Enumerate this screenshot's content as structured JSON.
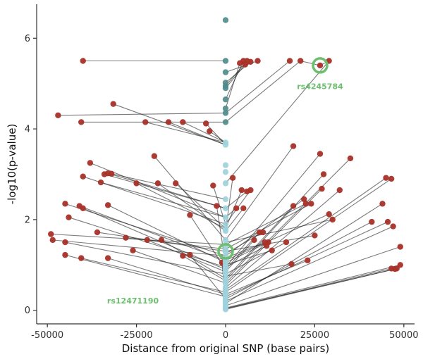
{
  "chart_data": {
    "type": "scatter",
    "xlabel": "Distance from original SNP (base pairs)",
    "ylabel": "-log10(p-value)",
    "xlim": [
      -53000,
      53000
    ],
    "ylim": [
      -0.3,
      6.75
    ],
    "xticks": [
      -50000,
      -25000,
      0,
      25000,
      50000
    ],
    "xtick_labels": [
      "-50000",
      "-25000",
      "0",
      "25000",
      "50000"
    ],
    "yticks": [
      0,
      2,
      4,
      6
    ],
    "ytick_labels": [
      "0",
      "2",
      "4",
      "6"
    ],
    "grid": false,
    "legend": "none",
    "colors": {
      "proxy": "#a83228",
      "original": "#9fd2db",
      "original_top": "#4f8a8b",
      "line": "#222222",
      "highlight": "#6cbf6c"
    },
    "series": [
      {
        "role": "original",
        "x": [
          0,
          0,
          0,
          0,
          0,
          0,
          0,
          0,
          0,
          0,
          0,
          0,
          0,
          0,
          0,
          0,
          0,
          0,
          0,
          0,
          0,
          0,
          0,
          0,
          0,
          0,
          0,
          0,
          0,
          0,
          0,
          0,
          0,
          0,
          0,
          0,
          0,
          0,
          0,
          0,
          0,
          0,
          0,
          0,
          0,
          0,
          0
        ],
        "y": [
          6.4,
          5.5,
          5.25,
          5.02,
          4.95,
          4.9,
          4.65,
          4.45,
          4.35,
          4.15,
          3.7,
          3.65,
          3.2,
          3.05,
          2.8,
          2.45,
          2.25,
          2.05,
          1.9,
          1.8,
          1.75,
          1.55,
          1.45,
          1.35,
          1.3,
          1.2,
          1.1,
          1.05,
          1.0,
          0.95,
          0.9,
          0.85,
          0.8,
          0.7,
          0.65,
          0.6,
          0.5,
          0.45,
          0.4,
          0.35,
          0.3,
          0.25,
          0.2,
          0.15,
          0.1,
          0.05,
          0.02
        ]
      },
      {
        "role": "proxy",
        "x": [
          -40000,
          -47000,
          -40500,
          -31500,
          -22500,
          -16000,
          -12000,
          -5500,
          -4500,
          -38000,
          -34000,
          -33000,
          -32000,
          -35000,
          -40000,
          -25000,
          -19000,
          -14000,
          -3500,
          -20000,
          -45000,
          -41000,
          -33000,
          -44000,
          -40000,
          -10000,
          -2500,
          -36000,
          -49000,
          -48500,
          -28000,
          -45000,
          -22000,
          -18000,
          -12000,
          -26000,
          -40500,
          -33000,
          -45000,
          -10000,
          -1000,
          2000,
          4500,
          6000,
          7000,
          19000,
          22000,
          29000,
          26500,
          3000,
          5000,
          8000,
          9500,
          17000,
          19000,
          27500,
          35000,
          27000,
          32000,
          45000,
          46500,
          22500,
          24000,
          25000,
          30000,
          23000,
          45500,
          41000,
          47000,
          44000,
          49000,
          49000,
          10500,
          11000,
          12000,
          13000,
          11500,
          18500,
          48000,
          46500,
          47500
        ],
        "y": [
          5.5,
          4.3,
          4.15,
          4.55,
          4.15,
          4.15,
          4.15,
          4.12,
          3.95,
          3.25,
          3.0,
          3.02,
          3.01,
          2.82,
          2.95,
          2.8,
          2.8,
          2.8,
          2.75,
          3.4,
          2.35,
          2.3,
          2.32,
          2.05,
          2.25,
          2.1,
          2.3,
          1.72,
          1.68,
          1.55,
          1.6,
          1.5,
          1.55,
          1.55,
          1.2,
          1.32,
          1.15,
          1.15,
          1.22,
          1.22,
          1.05,
          2.92,
          2.65,
          2.62,
          2.65,
          3.62,
          2.45,
          2.12,
          3.45,
          2.25,
          2.25,
          1.55,
          1.72,
          1.5,
          2.3,
          3.0,
          3.35,
          2.68,
          2.65,
          2.92,
          2.9,
          2.35,
          2.35,
          1.65,
          2.0,
          1.1,
          1.95,
          1.95,
          1.85,
          2.35,
          1.4,
          1.0,
          1.72,
          1.5,
          1.5,
          1.32,
          1.42,
          1.02,
          0.92,
          0.92,
          0.91
        ]
      },
      {
        "role": "proxy-top-cluster",
        "x": [
          4000,
          5000,
          5500,
          6000,
          7000,
          9000,
          18000,
          21000,
          26500,
          29000
        ],
        "y": [
          5.45,
          5.5,
          5.42,
          5.5,
          5.48,
          5.5,
          5.5,
          5.5,
          5.4,
          5.5
        ]
      }
    ],
    "links": [
      [
        0,
        5.5,
        -40000,
        5.5
      ],
      [
        0,
        4.35,
        -47000,
        4.3
      ],
      [
        0,
        4.15,
        -40500,
        4.15
      ],
      [
        0,
        3.65,
        -31500,
        4.55
      ],
      [
        0,
        3.7,
        -22500,
        4.15
      ],
      [
        0,
        3.65,
        -16000,
        4.15
      ],
      [
        0,
        3.7,
        -12000,
        4.15
      ],
      [
        0,
        3.65,
        -5500,
        4.12
      ],
      [
        0,
        3.7,
        -4500,
        3.95
      ],
      [
        0,
        2.05,
        -38000,
        3.25
      ],
      [
        0,
        2.25,
        -34000,
        3.0
      ],
      [
        0,
        2.25,
        -33000,
        3.02
      ],
      [
        0,
        2.45,
        -32000,
        3.01
      ],
      [
        0,
        2.05,
        -35000,
        2.82
      ],
      [
        0,
        1.9,
        -40000,
        2.95
      ],
      [
        0,
        1.8,
        -25000,
        2.8
      ],
      [
        0,
        1.75,
        -19000,
        2.8
      ],
      [
        0,
        1.8,
        -14000,
        2.8
      ],
      [
        0,
        1.9,
        -3500,
        2.75
      ],
      [
        0,
        1.55,
        -20000,
        3.4
      ],
      [
        0,
        1.2,
        -45000,
        2.35
      ],
      [
        0,
        1.1,
        -41000,
        2.3
      ],
      [
        0,
        1.05,
        -33000,
        2.32
      ],
      [
        0,
        0.95,
        -44000,
        2.05
      ],
      [
        0,
        0.9,
        -40000,
        2.25
      ],
      [
        0,
        0.9,
        -10000,
        2.1
      ],
      [
        0,
        1.0,
        -2500,
        2.3
      ],
      [
        0,
        1.3,
        -36000,
        1.72
      ],
      [
        0,
        1.45,
        -49000,
        1.68
      ],
      [
        0,
        1.2,
        -48500,
        1.55
      ],
      [
        0,
        1.35,
        -28000,
        1.6
      ],
      [
        0,
        0.8,
        -45000,
        1.5
      ],
      [
        0,
        0.85,
        -22000,
        1.55
      ],
      [
        0,
        0.7,
        -18000,
        1.55
      ],
      [
        0,
        0.65,
        -12000,
        1.2
      ],
      [
        0,
        0.6,
        -26000,
        1.32
      ],
      [
        0,
        0.4,
        -40500,
        1.15
      ],
      [
        0,
        0.35,
        -33000,
        1.15
      ],
      [
        0,
        0.3,
        -45000,
        1.22
      ],
      [
        0,
        0.25,
        -10000,
        1.22
      ],
      [
        0,
        0.1,
        -1000,
        1.05
      ],
      [
        0,
        4.45,
        4000,
        5.45
      ],
      [
        0,
        4.65,
        5000,
        5.5
      ],
      [
        0,
        4.9,
        5500,
        5.42
      ],
      [
        0,
        4.95,
        6000,
        5.5
      ],
      [
        0,
        5.02,
        7000,
        5.48
      ],
      [
        0,
        5.25,
        9000,
        5.5
      ],
      [
        0,
        4.35,
        18000,
        5.5
      ],
      [
        0,
        4.15,
        21000,
        5.5
      ],
      [
        0,
        2.8,
        29000,
        5.5
      ],
      [
        21000,
        5.5,
        26500,
        5.4
      ],
      [
        26500,
        5.4,
        29000,
        5.5
      ],
      [
        0,
        1.75,
        2000,
        2.92
      ],
      [
        0,
        1.8,
        4500,
        2.65
      ],
      [
        0,
        2.25,
        6000,
        2.62
      ],
      [
        0,
        1.9,
        7000,
        2.65
      ],
      [
        0,
        1.55,
        19000,
        3.62
      ],
      [
        0,
        1.2,
        22000,
        2.45
      ],
      [
        0,
        1.1,
        29000,
        2.12
      ],
      [
        0,
        0.95,
        26500,
        3.45
      ],
      [
        0,
        2.05,
        3000,
        2.25
      ],
      [
        0,
        1.75,
        5000,
        2.25
      ],
      [
        0,
        0.85,
        8000,
        1.55
      ],
      [
        0,
        0.9,
        9500,
        1.72
      ],
      [
        0,
        0.8,
        17000,
        1.5
      ],
      [
        0,
        0.7,
        19000,
        2.3
      ],
      [
        0,
        0.65,
        27500,
        3.0
      ],
      [
        0,
        0.6,
        35000,
        3.35
      ],
      [
        0,
        0.55,
        27000,
        2.68
      ],
      [
        0,
        0.5,
        32000,
        2.65
      ],
      [
        0,
        0.45,
        45000,
        2.92
      ],
      [
        0,
        0.4,
        46500,
        2.9
      ],
      [
        0,
        1.45,
        22500,
        2.35
      ],
      [
        0,
        1.35,
        24000,
        2.35
      ],
      [
        0,
        1.3,
        25000,
        1.65
      ],
      [
        0,
        1.5,
        30000,
        2.0
      ],
      [
        0,
        0.35,
        23000,
        1.1
      ],
      [
        0,
        0.3,
        45500,
        1.95
      ],
      [
        0,
        0.25,
        41000,
        1.95
      ],
      [
        0,
        0.2,
        47000,
        1.85
      ],
      [
        0,
        0.15,
        44000,
        2.35
      ],
      [
        0,
        0.1,
        49000,
        1.4
      ],
      [
        0,
        0.05,
        49000,
        1.0
      ],
      [
        0,
        1.25,
        10500,
        1.72
      ],
      [
        0,
        1.15,
        11000,
        1.5
      ],
      [
        0,
        1.05,
        12000,
        1.5
      ],
      [
        0,
        1.0,
        13000,
        1.32
      ],
      [
        0,
        0.95,
        11500,
        1.42
      ],
      [
        0,
        0.75,
        18500,
        1.02
      ],
      [
        0,
        0.02,
        48000,
        0.92
      ],
      [
        0,
        0.03,
        46500,
        0.92
      ],
      [
        0,
        0.04,
        47500,
        0.91
      ]
    ],
    "highlights": [
      {
        "label": "rs4245784",
        "x": 26500,
        "y": 5.4,
        "label_x": 26500,
        "label_y": 4.88
      },
      {
        "label": "rs12471190",
        "x": 0,
        "y": 1.3,
        "label_x": -26000,
        "label_y": 0.15
      }
    ]
  }
}
